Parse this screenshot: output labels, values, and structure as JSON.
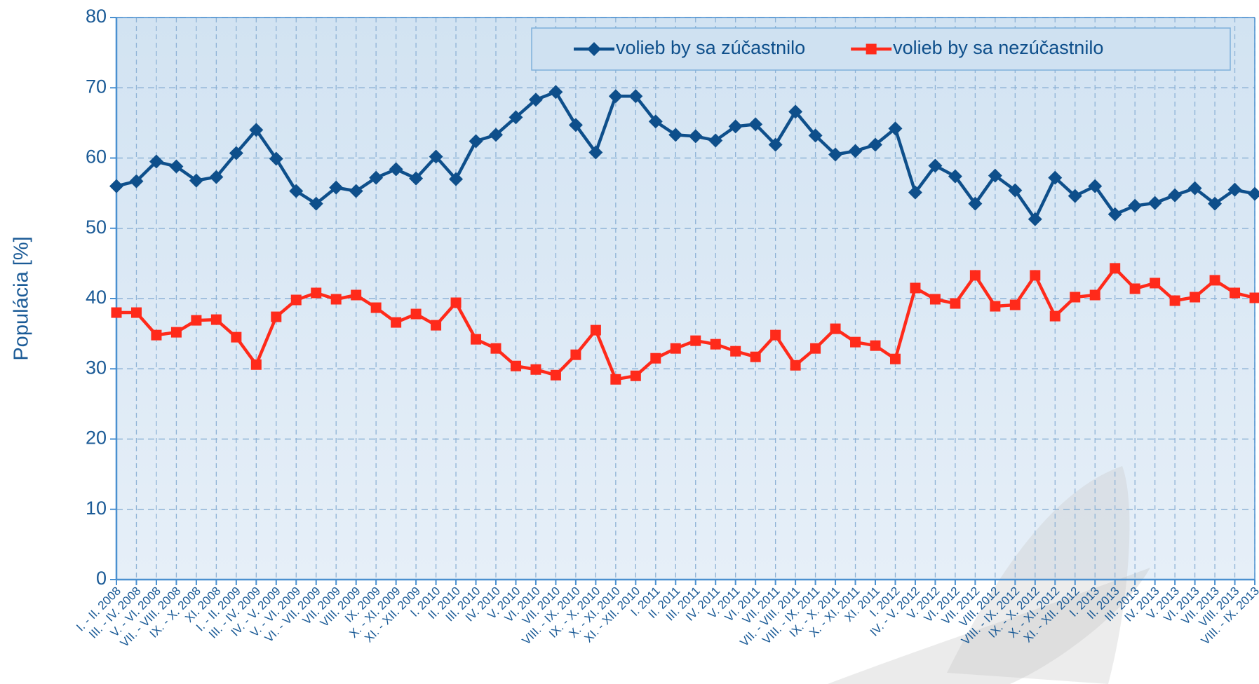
{
  "chart_data": {
    "type": "line",
    "y_label": "Populácia [%]",
    "categories": [
      "I. - II. 2008",
      "III. - IV. 2008",
      "V. - VI. 2008",
      "VII. - VIII. 2008",
      "IX. - X. 2008",
      "XI. 2008",
      "I. - II. 2009",
      "III. - IV. 2009",
      "IV. - V. 2009",
      "V. - VI. 2009",
      "VI. - VII. 2009",
      "VII. 2009",
      "VIII. 2009",
      "IX. 2009",
      "X. - XI. 2009",
      "XI. - XII. 2009",
      "I. 2010",
      "II. 2010",
      "III. 2010",
      "IV. 2010",
      "V. 2010",
      "VI. 2010",
      "VII. 2010",
      "VIII. - IX. 2010",
      "IX. - X. 2010",
      "X. - XI. 2010",
      "XI. - XII. 2010",
      "I. 2011",
      "II. 2011",
      "III. 2011",
      "IV. 2011",
      "V. 2011",
      "VI. 2011",
      "VII. 2011",
      "VII. - VIII. 2011",
      "VIII. - IX. 2011",
      "IX. - X. 2011",
      "X. - XI. 2011",
      "XI. 2011",
      "I. 2012",
      "IV. - V. 2012",
      "V. 2012",
      "VI. 2012",
      "VII. 2012",
      "VIII. 2012",
      "VIII. - IX. 2012",
      "IX. - X. 2012",
      "X. - XI. 2012",
      "XI. - XII. 2012",
      "I. 2013",
      "II. 2013",
      "III. 2013",
      "IV. 2013",
      "V. 2013",
      "VI. 2013",
      "VII. 2013",
      "VIII. 2013",
      "VIII. - IX. 2013"
    ],
    "series": [
      {
        "name": "volieb by sa zúčastnilo",
        "color": "#0e4f8b",
        "marker": "diamond",
        "values": [
          56,
          56.7,
          59.5,
          58.8,
          56.8,
          57.3,
          60.7,
          64,
          59.9,
          55.3,
          53.5,
          55.8,
          55.3,
          57.2,
          58.4,
          57.1,
          60.2,
          57,
          62.4,
          63.3,
          65.8,
          68.3,
          69.4,
          64.7,
          60.8,
          68.8,
          68.8,
          65.2,
          63.3,
          63.1,
          62.5,
          64.5,
          64.8,
          61.9,
          66.6,
          63.2,
          60.5,
          61,
          61.9,
          64.2,
          55.1,
          58.9,
          57.4,
          53.5,
          57.5,
          55.4,
          51.3,
          57.2,
          54.6,
          56,
          52,
          53.2,
          53.6,
          54.7,
          55.7,
          53.5,
          55.5,
          54.9
        ]
      },
      {
        "name": "volieb by sa nezúčastnilo",
        "color": "#ff2a1a",
        "marker": "square",
        "values": [
          38,
          38,
          34.8,
          35.2,
          36.9,
          37,
          34.5,
          30.6,
          37.4,
          39.8,
          40.8,
          39.9,
          40.5,
          38.7,
          36.6,
          37.8,
          36.2,
          39.4,
          34.2,
          32.9,
          30.4,
          29.9,
          29.1,
          32,
          35.5,
          28.5,
          29,
          31.5,
          32.9,
          34,
          33.5,
          32.5,
          31.7,
          34.8,
          30.5,
          32.9,
          35.7,
          33.8,
          33.3,
          31.4,
          41.5,
          39.9,
          39.3,
          43.3,
          38.9,
          39.1,
          43.3,
          37.5,
          40.2,
          40.5,
          44.3,
          41.4,
          42.2,
          39.7,
          40.2,
          42.6,
          40.8,
          40.1
        ]
      }
    ],
    "ylim": [
      0,
      80
    ],
    "yticks": [
      0,
      10,
      20,
      30,
      40,
      50,
      60,
      70,
      80
    ],
    "grid": true,
    "legend": "top-right"
  }
}
